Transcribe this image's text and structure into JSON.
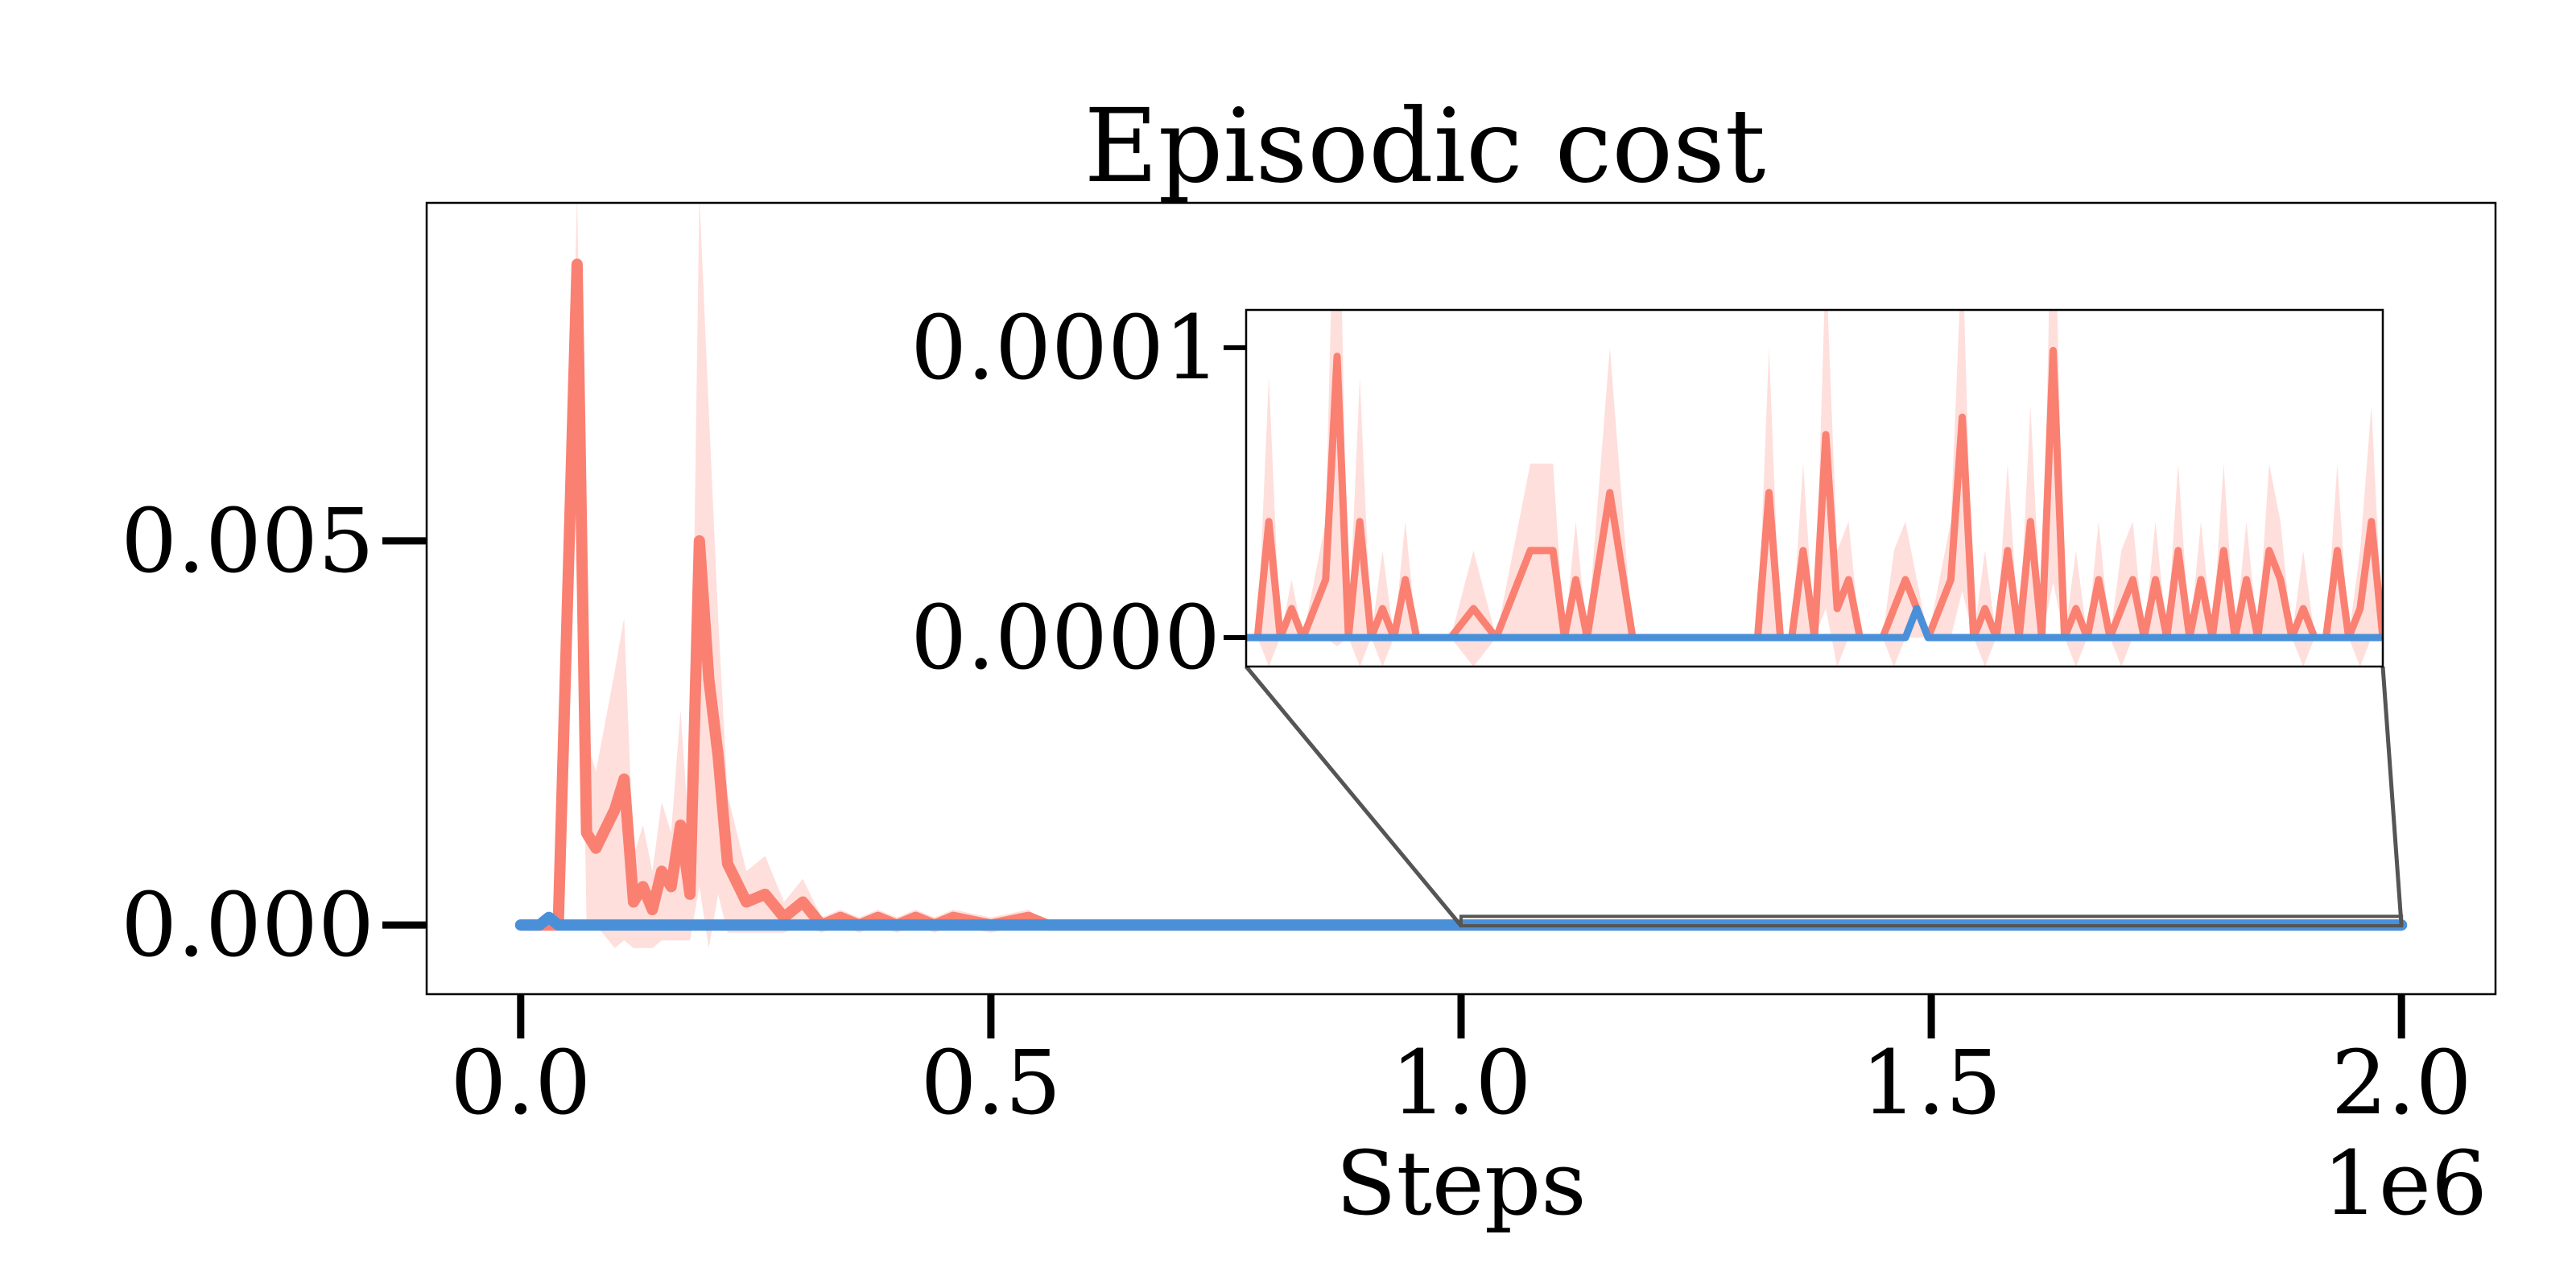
{
  "colors": {
    "background": "#ffffff",
    "axes_frame": "#000000",
    "series_colors": [
      "#FA8072",
      "#4A90D9"
    ],
    "band_alpha": 0.25,
    "connector": "#555555"
  },
  "chart_data": {
    "type": "line",
    "title": "Episodic cost",
    "xlabel": "Steps",
    "ylabel": "",
    "x_offset_label": "1e6",
    "xlim": [
      -0.1,
      2.1
    ],
    "ylim": [
      -0.0009,
      0.0094
    ],
    "x_ticks": [
      0.0,
      0.5,
      1.0,
      1.5,
      2.0
    ],
    "x_tick_labels": [
      "0.0",
      "0.5",
      "1.0",
      "1.5",
      "2.0"
    ],
    "y_ticks": [
      0.0,
      0.005
    ],
    "y_tick_labels": [
      "0.000",
      "0.005"
    ],
    "grid": false,
    "legend": "none",
    "series": [
      {
        "color": "#FA8072",
        "x": [
          0.0,
          0.02,
          0.04,
          0.06,
          0.07,
          0.08,
          0.1,
          0.11,
          0.12,
          0.13,
          0.14,
          0.15,
          0.16,
          0.17,
          0.18,
          0.19,
          0.2,
          0.21,
          0.22,
          0.24,
          0.26,
          0.28,
          0.3,
          0.32,
          0.34,
          0.36,
          0.38,
          0.4,
          0.42,
          0.44,
          0.46,
          0.5,
          0.54,
          0.56,
          0.6,
          0.7,
          0.8,
          0.9,
          1.0,
          1.1,
          1.2,
          1.3,
          1.4,
          1.5,
          1.6,
          1.7,
          1.8,
          1.9,
          2.0
        ],
        "y": [
          0.0,
          0.0,
          0.0,
          0.0086,
          0.0012,
          0.001,
          0.0015,
          0.0019,
          0.0003,
          0.0005,
          0.0002,
          0.0007,
          0.0005,
          0.0013,
          0.0004,
          0.005,
          0.0032,
          0.0022,
          0.0008,
          0.0003,
          0.0004,
          0.0001,
          0.0003,
          0.0,
          0.0001,
          0.0,
          0.0001,
          0.0,
          0.0001,
          0.0,
          0.0001,
          0.0,
          0.0001,
          0.0,
          0.0,
          0.0,
          0.0,
          0.0,
          0.0,
          0.0,
          0.0,
          0.0,
          0.0,
          0.0,
          0.0,
          0.0,
          0.0,
          0.0,
          0.0
        ],
        "band_width": [
          0.0,
          0.0,
          0.0,
          0.0009,
          0.0012,
          0.001,
          0.0018,
          0.0021,
          0.0006,
          0.0008,
          0.0005,
          0.0009,
          0.0007,
          0.0015,
          0.0006,
          0.0045,
          0.0035,
          0.0018,
          0.0009,
          0.0004,
          0.0005,
          0.0002,
          0.0003,
          0.0001,
          0.0001,
          0.0001,
          0.0001,
          0.0001,
          0.0001,
          0.0001,
          0.0001,
          0.0001,
          0.0001,
          0.0,
          0.0,
          0.0,
          0.0,
          0.0,
          0.0,
          0.0,
          0.0,
          0.0,
          0.0,
          0.0,
          0.0,
          0.0,
          0.0,
          0.0,
          0.0
        ]
      },
      {
        "color": "#4A90D9",
        "x": [
          0.0,
          0.02,
          0.03,
          0.04,
          0.06,
          0.5,
          1.0,
          1.5,
          2.0
        ],
        "y": [
          0.0,
          0.0,
          0.0001,
          0.0,
          0.0,
          0.0,
          0.0,
          0.0,
          0.0
        ],
        "band_width": [
          0.0,
          0.0,
          0.0,
          0.0,
          0.0,
          0.0,
          0.0,
          0.0,
          0.0
        ]
      }
    ],
    "inset": {
      "xlim": [
        1.0,
        2.0
      ],
      "ylim": [
        -1e-05,
        0.000113
      ],
      "y_ticks": [
        0.0,
        0.0001
      ],
      "y_tick_labels": [
        "0.0000",
        "0.0001"
      ],
      "series": [
        {
          "color": "#FA8072",
          "x": [
            1.0,
            1.01,
            1.02,
            1.03,
            1.04,
            1.05,
            1.07,
            1.08,
            1.09,
            1.1,
            1.11,
            1.12,
            1.13,
            1.14,
            1.15,
            1.16,
            1.18,
            1.2,
            1.22,
            1.25,
            1.27,
            1.28,
            1.29,
            1.3,
            1.32,
            1.34,
            1.36,
            1.37,
            1.38,
            1.39,
            1.4,
            1.41,
            1.42,
            1.43,
            1.44,
            1.45,
            1.46,
            1.47,
            1.48,
            1.49,
            1.5,
            1.51,
            1.52,
            1.53,
            1.54,
            1.55,
            1.56,
            1.57,
            1.58,
            1.6,
            1.62,
            1.63,
            1.64,
            1.65,
            1.66,
            1.67,
            1.68,
            1.69,
            1.7,
            1.71,
            1.72,
            1.73,
            1.74,
            1.75,
            1.76,
            1.77,
            1.78,
            1.79,
            1.8,
            1.81,
            1.82,
            1.83,
            1.84,
            1.85,
            1.86,
            1.87,
            1.88,
            1.89,
            1.9,
            1.91,
            1.92,
            1.93,
            1.94,
            1.95,
            1.96,
            1.97,
            1.98,
            1.99,
            2.0
          ],
          "y": [
            0.0,
            0.0,
            4e-05,
            0.0,
            1e-05,
            0.0,
            2e-05,
            9.7e-05,
            0.0,
            4e-05,
            0.0,
            1e-05,
            0.0,
            2e-05,
            0.0,
            0.0,
            0.0,
            1e-05,
            0.0,
            3e-05,
            3e-05,
            0.0,
            2e-05,
            0.0,
            5e-05,
            0.0,
            0.0,
            0.0,
            0.0,
            0.0,
            0.0,
            0.0,
            0.0,
            0.0,
            0.0,
            0.0,
            5e-05,
            0.0,
            0.0,
            3e-05,
            0.0,
            7e-05,
            1e-05,
            2e-05,
            0.0,
            0.0,
            0.0,
            1e-05,
            2e-05,
            0.0,
            2e-05,
            7.6e-05,
            0.0,
            1e-05,
            0.0,
            3e-05,
            0.0,
            4e-05,
            0.0,
            9.9e-05,
            0.0,
            1e-05,
            0.0,
            2e-05,
            0.0,
            1e-05,
            2e-05,
            0.0,
            2e-05,
            0.0,
            3e-05,
            0.0,
            2e-05,
            0.0,
            3e-05,
            0.0,
            2e-05,
            0.0,
            3e-05,
            2e-05,
            0.0,
            1e-05,
            0.0,
            0.0,
            3e-05,
            0.0,
            1e-05,
            4e-05,
            0.0
          ],
          "band_width": [
            0.0,
            0.0,
            5e-05,
            0.0,
            1e-05,
            0.0,
            2e-05,
            0.0001,
            0.0,
            5e-05,
            0.0,
            2e-05,
            0.0,
            2e-05,
            0.0,
            0.0,
            0.0,
            2e-05,
            0.0,
            3e-05,
            3e-05,
            0.0,
            2e-05,
            0.0,
            5e-05,
            0.0,
            0.0,
            0.0,
            0.0,
            0.0,
            0.0,
            0.0,
            0.0,
            0.0,
            0.0,
            0.0,
            5e-05,
            0.0,
            0.0,
            3e-05,
            0.0,
            6e-05,
            2e-05,
            2e-05,
            0.0,
            0.0,
            0.0,
            2e-05,
            2e-05,
            0.0,
            2e-05,
            6e-05,
            0.0,
            2e-05,
            0.0,
            3e-05,
            0.0,
            4e-05,
            0.0,
            8e-05,
            0.0,
            2e-05,
            0.0,
            2e-05,
            0.0,
            2e-05,
            2e-05,
            0.0,
            2e-05,
            0.0,
            3e-05,
            0.0,
            2e-05,
            0.0,
            3e-05,
            0.0,
            2e-05,
            0.0,
            3e-05,
            2e-05,
            0.0,
            2e-05,
            0.0,
            0.0,
            3e-05,
            0.0,
            2e-05,
            4e-05,
            0.0
          ]
        },
        {
          "color": "#4A90D9",
          "x": [
            1.0,
            1.5,
            1.58,
            1.59,
            1.6,
            2.0
          ],
          "y": [
            0.0,
            0.0,
            0.0,
            1e-05,
            0.0,
            0.0
          ],
          "band_width": [
            0.0,
            0.0,
            0.0,
            0.0,
            0.0,
            0.0
          ]
        }
      ]
    }
  }
}
